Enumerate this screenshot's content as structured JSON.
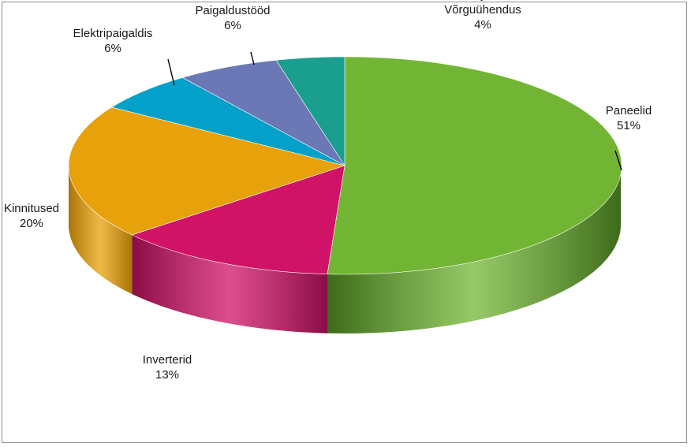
{
  "chart_data": {
    "type": "pie",
    "title": "",
    "slices": [
      {
        "label": "Paneelid",
        "value": 51,
        "value_label": "51%",
        "color": "#72b535",
        "side_color": "#3d6b1a"
      },
      {
        "label": "Inverterid",
        "value": 13,
        "value_label": "13%",
        "color": "#d01367",
        "side_color": "#8a0d45"
      },
      {
        "label": "Kinnitused",
        "value": 20,
        "value_label": "20%",
        "color": "#e6a10b",
        "side_color": "#a87406"
      },
      {
        "label": "Elektripaigaldis",
        "value": 6,
        "value_label": "6%",
        "color": "#03a0c9",
        "side_color": "#02708c"
      },
      {
        "label": "Paigaldustööd",
        "value": 6,
        "value_label": "6%",
        "color": "#6b78b5",
        "side_color": "#495287"
      },
      {
        "label": "Projekt, Võrguühendus",
        "label_lines": [
          "Projekt,",
          "Võrguühendus"
        ],
        "value": 4,
        "value_label": "4%",
        "color": "#1a9e8e",
        "side_color": "#106b60"
      }
    ],
    "start_angle_deg": -90,
    "direction": "clockwise",
    "legend": "none",
    "style": "3d"
  }
}
